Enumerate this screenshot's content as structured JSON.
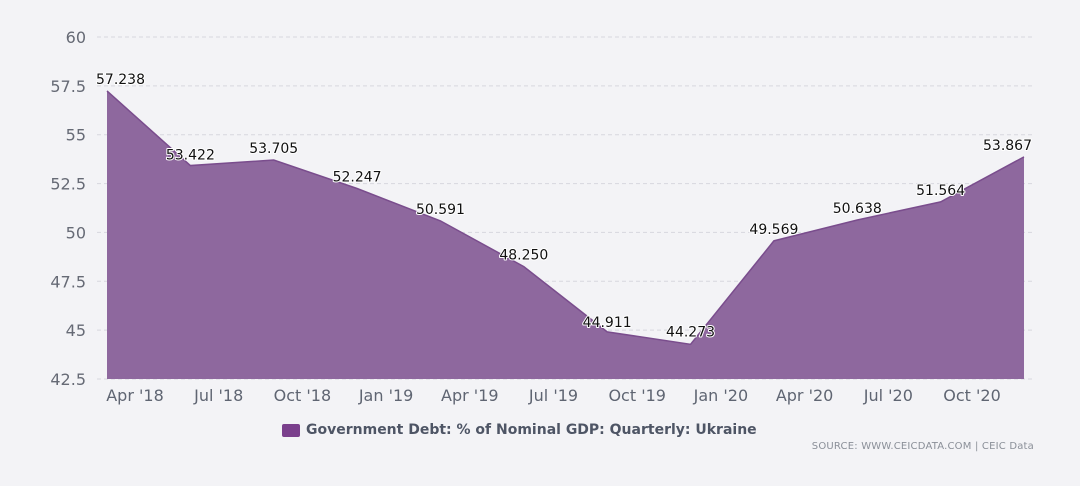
{
  "colors": {
    "area_fill": "#8e689e",
    "area_stroke": "#7a4d8d",
    "legend_swatch": "#7a3f8c",
    "background": "#f3f3f6"
  },
  "legend": {
    "label": "Government Debt: % of Nominal GDP: Quarterly: Ukraine"
  },
  "source": {
    "text": "SOURCE: WWW.CEICDATA.COM | CEIC Data"
  },
  "chart_data": {
    "type": "area",
    "title": "",
    "xlabel": "",
    "ylabel": "",
    "x_labels": [
      "Apr '18",
      "Jul '18",
      "Oct '18",
      "Jan '19",
      "Apr '19",
      "Jul '19",
      "Oct '19",
      "Jan '20",
      "Apr '20",
      "Jul '20",
      "Oct '20"
    ],
    "y_ticks": [
      "42.5",
      "45",
      "47.5",
      "50",
      "52.5",
      "55",
      "57.5",
      "60"
    ],
    "ylim": [
      42.5,
      60
    ],
    "grid": true,
    "legend_position": "bottom",
    "series": [
      {
        "name": "Government Debt: % of Nominal GDP: Quarterly: Ukraine",
        "points": [
          {
            "period": "Mar 2018",
            "value": 57.238,
            "label": "57.238"
          },
          {
            "period": "Jun 2018",
            "value": 53.422,
            "label": "53.422"
          },
          {
            "period": "Sep 2018",
            "value": 53.705,
            "label": "53.705"
          },
          {
            "period": "Dec 2018",
            "value": 52.247,
            "label": "52.247"
          },
          {
            "period": "Mar 2019",
            "value": 50.591,
            "label": "50.591"
          },
          {
            "period": "Jun 2019",
            "value": 48.25,
            "label": "48.250"
          },
          {
            "period": "Sep 2019",
            "value": 44.911,
            "label": "44.911"
          },
          {
            "period": "Dec 2019",
            "value": 44.273,
            "label": "44.273"
          },
          {
            "period": "Mar 2020",
            "value": 49.569,
            "label": "49.569"
          },
          {
            "period": "Jun 2020",
            "value": 50.638,
            "label": "50.638"
          },
          {
            "period": "Sep 2020",
            "value": 51.564,
            "label": "51.564"
          },
          {
            "period": "Dec 2020",
            "value": 53.867,
            "label": "53.867"
          }
        ]
      }
    ]
  }
}
